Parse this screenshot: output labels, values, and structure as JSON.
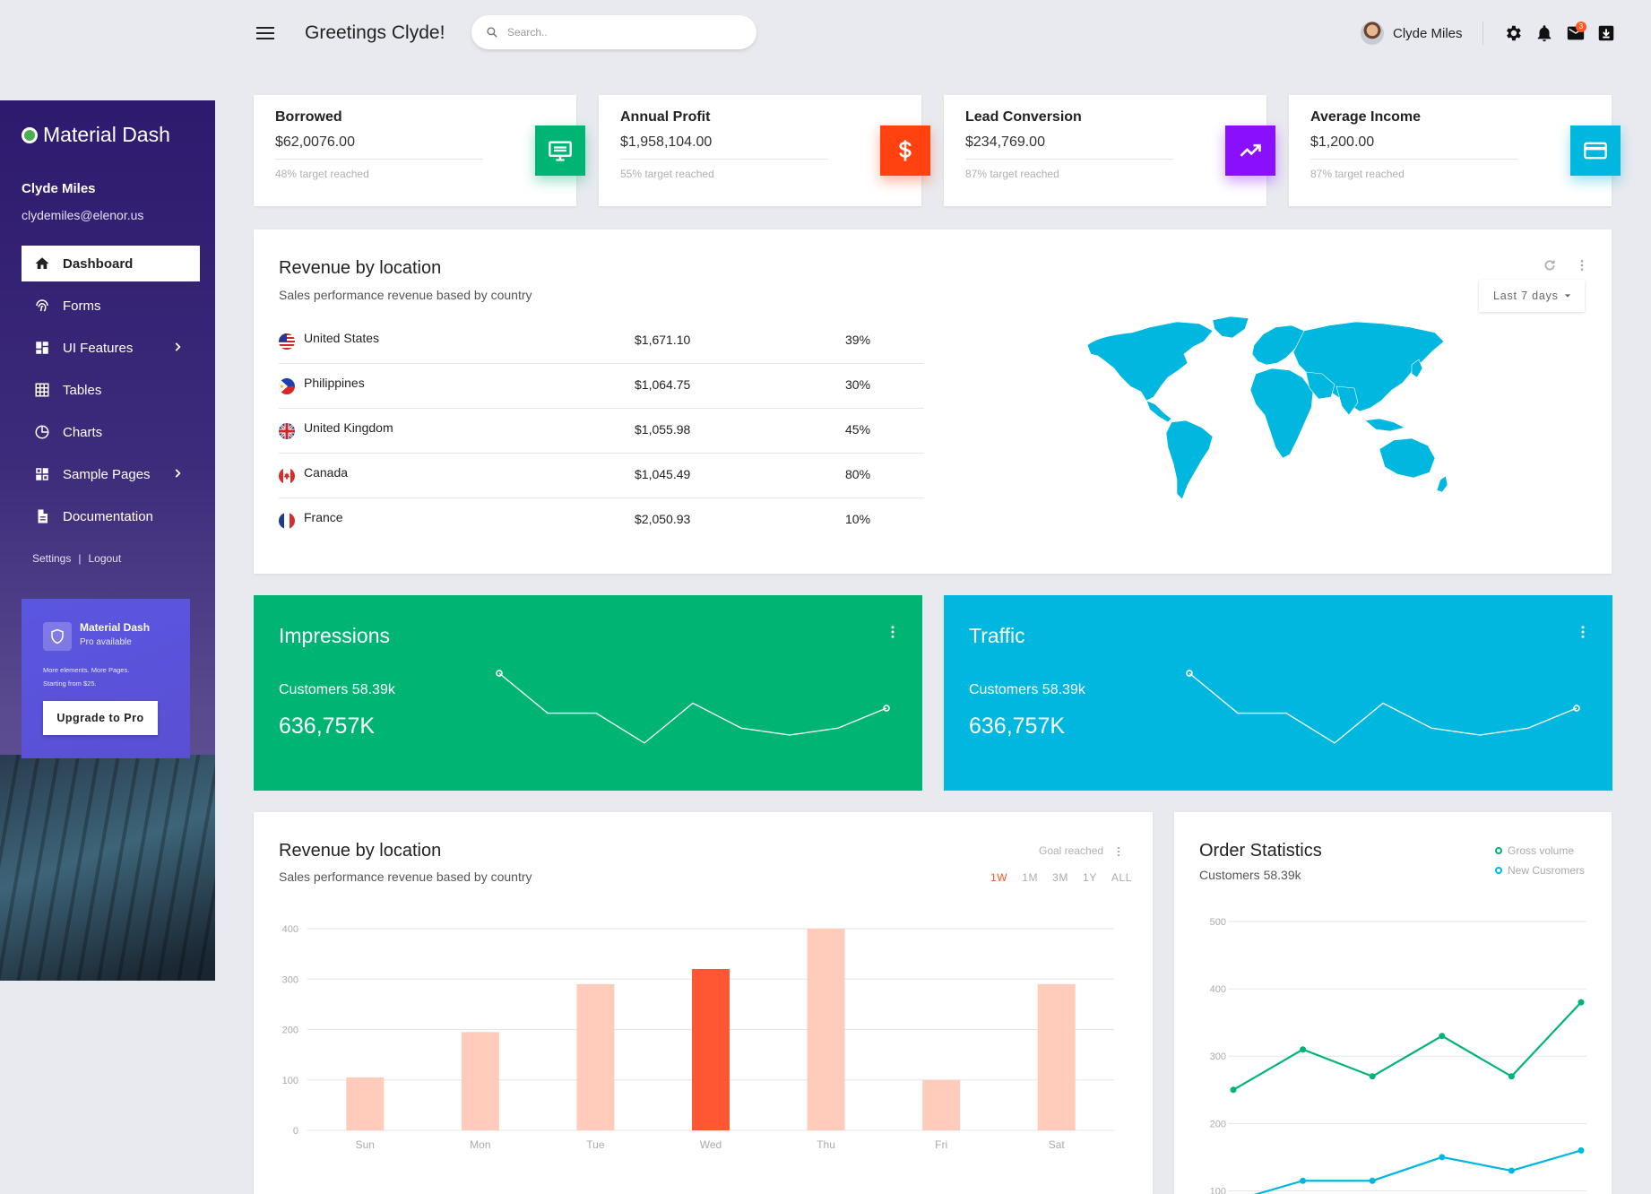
{
  "header": {
    "greeting": "Greetings Clyde!",
    "search_placeholder": "Search..",
    "user_name": "Clyde Miles",
    "mail_badge": "3"
  },
  "sidebar": {
    "brand": "Material Dash",
    "user_name": "Clyde Miles",
    "user_email": "clydemiles@elenor.us",
    "items": [
      {
        "label": "Dashboard",
        "icon": "home-icon"
      },
      {
        "label": "Forms",
        "icon": "fingerprint-icon"
      },
      {
        "label": "UI Features",
        "icon": "dashboard-icon"
      },
      {
        "label": "Tables",
        "icon": "grid-icon"
      },
      {
        "label": "Charts",
        "icon": "pie-chart-icon"
      },
      {
        "label": "Sample Pages",
        "icon": "pages-icon"
      },
      {
        "label": "Documentation",
        "icon": "document-icon"
      }
    ],
    "settings": "Settings",
    "separator": "|",
    "logout": "Logout",
    "pro": {
      "title": "Material Dash",
      "subtitle": "Pro available",
      "desc_line1": "More elements. More Pages.",
      "desc_line2": "Starting from $25.",
      "button": "Upgrade to Pro"
    }
  },
  "stats": [
    {
      "title": "Borrowed",
      "value": "$62,0076.00",
      "note": "48% target reached",
      "color": "#00b574",
      "icon": "monitor-icon"
    },
    {
      "title": "Annual Profit",
      "value": "$1,958,104.00",
      "note": "55% target reached",
      "color": "#ff420f",
      "icon": "dollar-icon"
    },
    {
      "title": "Lead Conversion",
      "value": "$234,769.00",
      "note": "87% target reached",
      "color": "#8a0ffd",
      "icon": "trending-up-icon"
    },
    {
      "title": "Average Income",
      "value": "$1,200.00",
      "note": "87% target reached",
      "color": "#00b7df",
      "icon": "credit-card-icon"
    }
  ],
  "revenue_location": {
    "title": "Revenue by location",
    "subtitle": "Sales performance revenue based by country",
    "period": "Last 7 days",
    "rows": [
      {
        "country": "United States",
        "amount": "$1,671.10",
        "pct": "39%"
      },
      {
        "country": "Philippines",
        "amount": "$1,064.75",
        "pct": "30%"
      },
      {
        "country": "United Kingdom",
        "amount": "$1,055.98",
        "pct": "45%"
      },
      {
        "country": "Canada",
        "amount": "$1,045.49",
        "pct": "80%"
      },
      {
        "country": "France",
        "amount": "$2,050.93",
        "pct": "10%"
      }
    ],
    "map_color": "#00b7df"
  },
  "impressions": {
    "title": "Impressions",
    "sub": "Customers 58.39k",
    "value": "636,757K",
    "color": "#00b574"
  },
  "traffic": {
    "title": "Traffic",
    "sub": "Customers 58.39k",
    "value": "636,757K",
    "color": "#00b7df"
  },
  "bar_card": {
    "title": "Revenue by location",
    "subtitle": "Sales performance revenue based by country",
    "goal_label": "Goal reached",
    "ranges": [
      "1W",
      "1M",
      "3M",
      "1Y",
      "ALL"
    ],
    "active_range": "1W"
  },
  "order_stats": {
    "title": "Order Statistics",
    "subtitle": "Customers 58.39k",
    "legend": [
      {
        "name": "Gross volume",
        "color": "#00b574"
      },
      {
        "name": "New Cusromers",
        "color": "#00b7df"
      }
    ]
  },
  "chart_data": [
    {
      "type": "line",
      "title": "Impressions",
      "x": [
        1,
        2,
        3,
        4,
        5,
        6,
        7,
        8,
        9
      ],
      "values": [
        80,
        40,
        40,
        10,
        50,
        25,
        18,
        25,
        45
      ],
      "grid": false
    },
    {
      "type": "line",
      "title": "Traffic",
      "x": [
        1,
        2,
        3,
        4,
        5,
        6,
        7,
        8,
        9
      ],
      "values": [
        80,
        40,
        40,
        10,
        50,
        25,
        18,
        25,
        45
      ],
      "grid": false
    },
    {
      "type": "bar",
      "categories": [
        "Sun",
        "Mon",
        "Tue",
        "Wed",
        "Thu",
        "Fri",
        "Sat"
      ],
      "values": [
        105,
        195,
        290,
        320,
        400,
        100,
        290
      ],
      "highlight": "Wed",
      "ylim": [
        0,
        400
      ],
      "yticks": [
        0,
        100,
        200,
        300,
        400
      ],
      "bar_color": "#ffccbc",
      "highlight_color": "#ff5733",
      "grid": true
    },
    {
      "type": "line",
      "series": [
        {
          "name": "Gross volume",
          "values": [
            250,
            310,
            270,
            330,
            270,
            380
          ]
        },
        {
          "name": "New Cusromers",
          "values": [
            85,
            115,
            115,
            150,
            130,
            160
          ]
        }
      ],
      "ylim": [
        90,
        500
      ],
      "yticks": [
        100,
        200,
        300,
        400,
        500
      ],
      "grid": true
    }
  ]
}
